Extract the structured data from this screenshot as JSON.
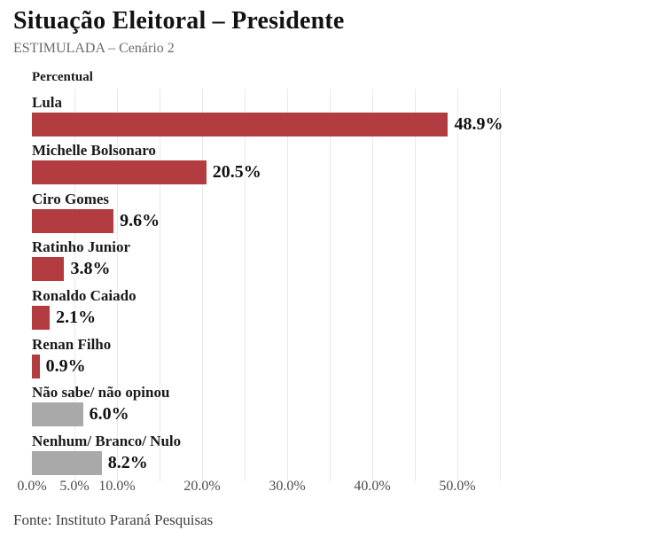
{
  "header": {
    "title": "Situação Eleitoral – Presidente",
    "subtitle": "ESTIMULADA – Cenário 2"
  },
  "footer": {
    "source": "Fonte: Instituto Paraná Pesquisas"
  },
  "colors": {
    "candidate_bar": "#b23c3f",
    "neutral_bar": "#a9a9a9",
    "gridline": "#e9e9e9",
    "title_text": "#121212",
    "subtitle_text": "#6b6b6b",
    "axis_text": "#4c4c4c"
  },
  "chart_data": {
    "type": "bar",
    "orientation": "horizontal",
    "title": "Situação Eleitoral – Presidente",
    "subtitle": "ESTIMULADA – Cenário 2",
    "xlabel": "",
    "ylabel": "Percentual",
    "xlim": [
      0,
      55.6
    ],
    "grid": true,
    "grid_step": 5,
    "legend_position": "none",
    "categories": [
      "Lula",
      "Michelle Bolsonaro",
      "Ciro Gomes",
      "Ratinho Junior",
      "Ronaldo Caiado",
      "Renan Filho",
      "Não sabe/ não opinou",
      "Nenhum/ Branco/ Nulo"
    ],
    "values": [
      48.9,
      20.5,
      9.6,
      3.8,
      2.1,
      0.9,
      6.0,
      8.2
    ],
    "items": [
      {
        "label": "Lula",
        "value": 48.9,
        "display": "48.9%",
        "color": "#b23c3f"
      },
      {
        "label": "Michelle Bolsonaro",
        "value": 20.5,
        "display": "20.5%",
        "color": "#b23c3f"
      },
      {
        "label": "Ciro Gomes",
        "value": 9.6,
        "display": "9.6%",
        "color": "#b23c3f"
      },
      {
        "label": "Ratinho Junior",
        "value": 3.8,
        "display": "3.8%",
        "color": "#b23c3f"
      },
      {
        "label": "Ronaldo Caiado",
        "value": 2.1,
        "display": "2.1%",
        "color": "#b23c3f"
      },
      {
        "label": "Renan Filho",
        "value": 0.9,
        "display": "0.9%",
        "color": "#b23c3f"
      },
      {
        "label": "Não sabe/ não opinou",
        "value": 6.0,
        "display": "6.0%",
        "color": "#a9a9a9"
      },
      {
        "label": "Nenhum/ Branco/ Nulo",
        "value": 8.2,
        "display": "8.2%",
        "color": "#a9a9a9"
      }
    ],
    "x_ticks": [
      {
        "value": 0,
        "label": "0.0%"
      },
      {
        "value": 5,
        "label": "5.0%"
      },
      {
        "value": 10,
        "label": "10.0%"
      },
      {
        "value": 20,
        "label": "20.0%"
      },
      {
        "value": 30,
        "label": "30.0%"
      },
      {
        "value": 40,
        "label": "40.0%"
      },
      {
        "value": 50,
        "label": "50.0%"
      }
    ]
  }
}
